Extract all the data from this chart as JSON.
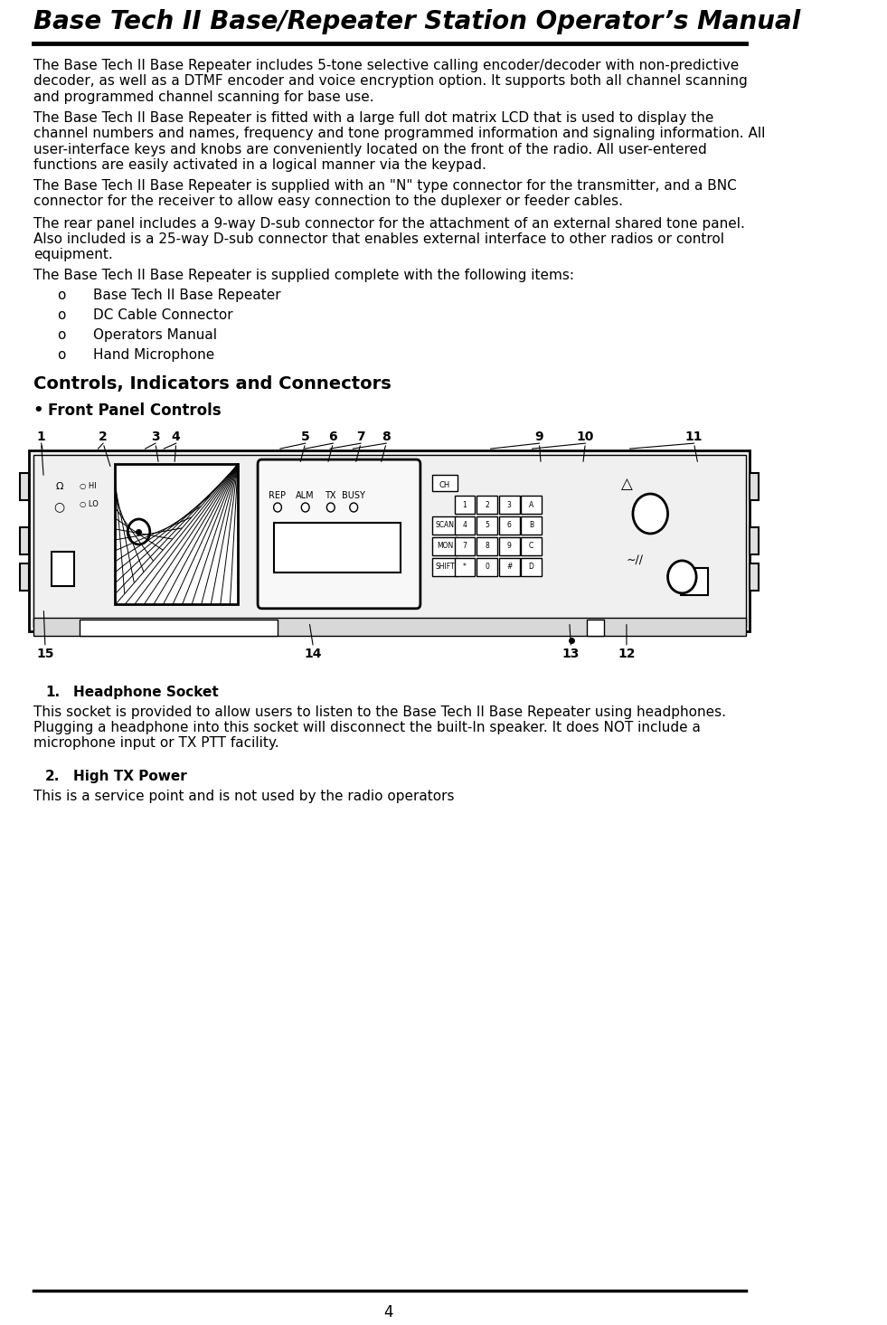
{
  "title": "Base Tech II Base/Repeater Station Operator’s Manual",
  "page_number": "4",
  "background_color": "#ffffff",
  "title_fontsize": 20,
  "body_fontsize": 11,
  "paragraphs": [
    "The Base Tech II Base Repeater includes 5-tone selective calling encoder/decoder with non-predictive\ndecoder, as well as a DTMF encoder and voice encryption option. It supports both all channel scanning\nand programmed channel scanning for base use.",
    "The Base Tech II Base Repeater is fitted with a large full dot matrix LCD that is used to display the\nchannel numbers and names, frequency and tone programmed information and signaling information. All\nuser-interface keys and knobs are conveniently located on the front of the radio. All user-entered\nfunctions are easily activated in a logical manner via the keypad.",
    "The Base Tech II Base Repeater is supplied with an \"N\" type connector for the transmitter, and a BNC\nconnector for the receiver to allow easy connection to the duplexer or feeder cables.",
    "The rear panel includes a 9-way D-sub connector for the attachment of an external shared tone panel.\nAlso included is a 25-way D-sub connector that enables external interface to other radios or control\nequipment.",
    "The Base Tech II Base Repeater is supplied complete with the following items:"
  ],
  "list_items": [
    "Base Tech II Base Repeater",
    "DC Cable Connector",
    "Operators Manual",
    "Hand Microphone"
  ],
  "section_heading": "Controls, Indicators and Connectors",
  "subsection_bullet": "Front Panel Controls",
  "numbered_items": [
    {
      "number": "1.",
      "heading": "Headphone Socket",
      "body": "This socket is provided to allow users to listen to the Base Tech II Base Repeater using headphones.\nPlugging a headphone into this socket will disconnect the built-In speaker. It does NOT include a\nmicrophone input or TX PTT facility."
    },
    {
      "number": "2.",
      "heading": "High TX Power",
      "body": "This is a service point and is not used by the radio operators"
    }
  ]
}
